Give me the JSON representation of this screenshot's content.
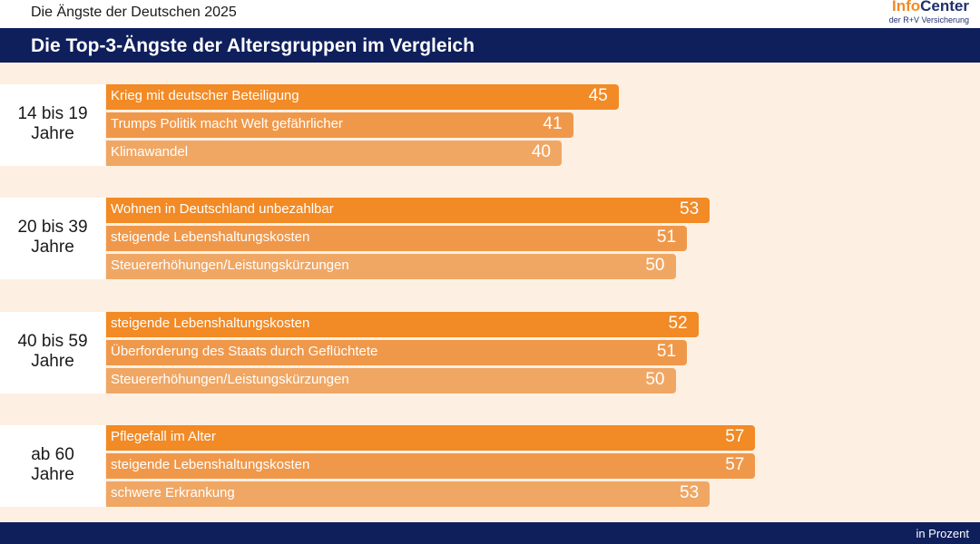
{
  "header": {
    "subtitle": "Die Ängste der Deutschen 2025",
    "logo_info": "Info",
    "logo_center": "Center",
    "logo_sub": "der R+V Versicherung"
  },
  "footer": {
    "unit": "in Prozent"
  },
  "colors": {
    "rank1": "#f28a25",
    "rank2": "#f0984a",
    "rank3": "#f0a764"
  },
  "chart_data": {
    "type": "bar",
    "orientation": "horizontal",
    "title": "Die Top-3-Ängste der Altersgruppen im Vergleich",
    "unit": "in Prozent",
    "groups": [
      {
        "label_line1": "14 bis 19",
        "label_line2": "Jahre",
        "bars": [
          {
            "label": "Krieg mit deutscher Beteiligung",
            "value": 45
          },
          {
            "label": "Trumps Politik macht Welt gefährlicher",
            "value": 41
          },
          {
            "label": "Klimawandel",
            "value": 40
          }
        ]
      },
      {
        "label_line1": "20 bis 39",
        "label_line2": "Jahre",
        "bars": [
          {
            "label": "Wohnen in Deutschland unbezahlbar",
            "value": 53
          },
          {
            "label": "steigende Lebenshaltungskosten",
            "value": 51
          },
          {
            "label": "Steuererhöhungen/Leistungskürzungen",
            "value": 50
          }
        ]
      },
      {
        "label_line1": "40 bis 59",
        "label_line2": "Jahre",
        "bars": [
          {
            "label": "steigende Lebenshaltungskosten",
            "value": 52
          },
          {
            "label": "Überforderung des Staats durch Geflüchtete",
            "value": 51
          },
          {
            "label": "Steuererhöhungen/Leistungskürzungen",
            "value": 50
          }
        ]
      },
      {
        "label_line1": "ab 60",
        "label_line2": "Jahre",
        "bars": [
          {
            "label": "Pflegefall im Alter",
            "value": 57
          },
          {
            "label": "steigende Lebenshaltungskosten",
            "value": 57
          },
          {
            "label": "schwere Erkrankung",
            "value": 53
          }
        ]
      }
    ]
  }
}
